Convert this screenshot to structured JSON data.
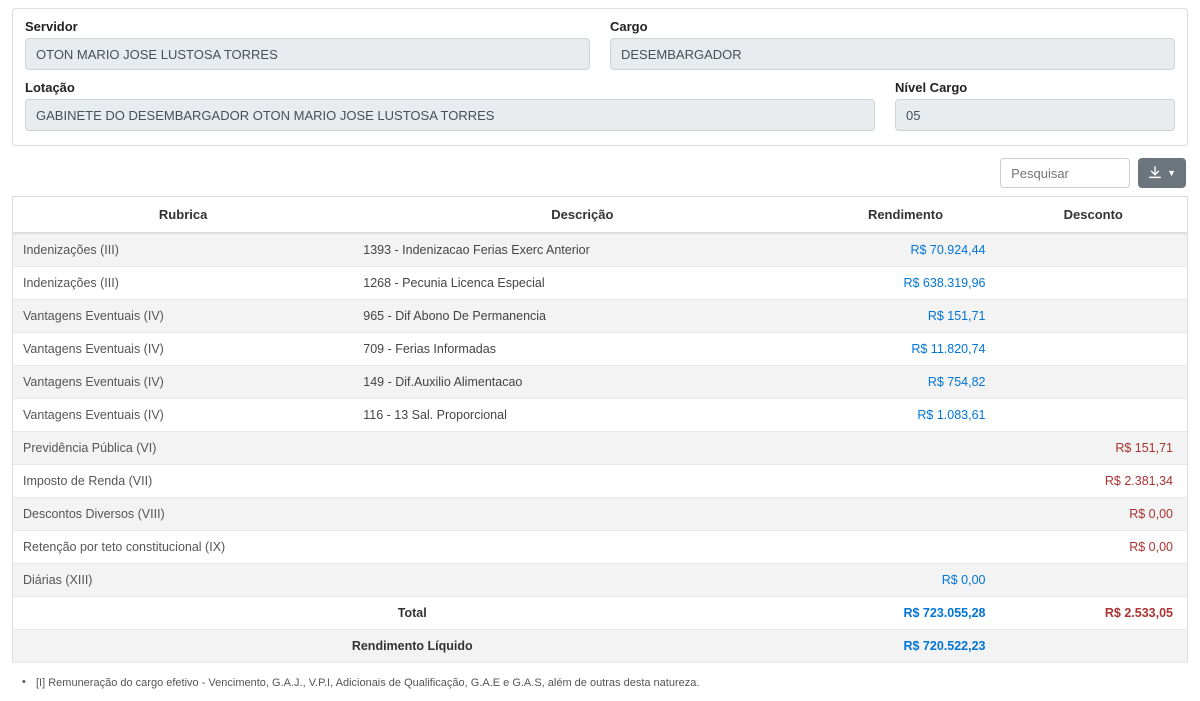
{
  "form": {
    "servidor": {
      "label": "Servidor",
      "value": "OTON MARIO JOSE LUSTOSA TORRES"
    },
    "cargo": {
      "label": "Cargo",
      "value": "DESEMBARGADOR"
    },
    "lotacao": {
      "label": "Lotação",
      "value": "GABINETE DO DESEMBARGADOR OTON MARIO JOSE LUSTOSA TORRES"
    },
    "nivel_cargo": {
      "label": "Nível Cargo",
      "value": "05"
    }
  },
  "toolbar": {
    "search_placeholder": "Pesquisar"
  },
  "table": {
    "headers": {
      "rubrica": "Rubrica",
      "descricao": "Descrição",
      "rendimento": "Rendimento",
      "desconto": "Desconto"
    },
    "rows": [
      {
        "rubrica": "Indenizações (III)",
        "descricao": "1393 - Indenizacao Ferias Exerc Anterior",
        "rendimento": "R$ 70.924,44",
        "desconto": ""
      },
      {
        "rubrica": "Indenizações (III)",
        "descricao": "1268 - Pecunia Licenca Especial",
        "rendimento": "R$ 638.319,96",
        "desconto": ""
      },
      {
        "rubrica": "Vantagens Eventuais (IV)",
        "descricao": "965 - Dif Abono De Permanencia",
        "rendimento": "R$ 151,71",
        "desconto": ""
      },
      {
        "rubrica": "Vantagens Eventuais (IV)",
        "descricao": "709 - Ferias Informadas",
        "rendimento": "R$ 11.820,74",
        "desconto": ""
      },
      {
        "rubrica": "Vantagens Eventuais (IV)",
        "descricao": "149 - Dif.Auxilio Alimentacao",
        "rendimento": "R$ 754,82",
        "desconto": ""
      },
      {
        "rubrica": "Vantagens Eventuais (IV)",
        "descricao": "116 - 13 Sal. Proporcional",
        "rendimento": "R$ 1.083,61",
        "desconto": ""
      },
      {
        "rubrica": "Previdência Pública (VI)",
        "descricao": "",
        "rendimento": "",
        "desconto": "R$ 151,71"
      },
      {
        "rubrica": "Imposto de Renda (VII)",
        "descricao": "",
        "rendimento": "",
        "desconto": "R$ 2.381,34"
      },
      {
        "rubrica": "Descontos Diversos (VIII)",
        "descricao": "",
        "rendimento": "",
        "desconto": "R$ 0,00"
      },
      {
        "rubrica": "Retenção por teto constitucional (IX)",
        "descricao": "",
        "rendimento": "",
        "desconto": "R$ 0,00"
      },
      {
        "rubrica": "Diárias (XIII)",
        "descricao": "",
        "rendimento": "R$ 0,00",
        "desconto": ""
      }
    ],
    "total": {
      "label": "Total",
      "rendimento": "R$ 723.055,28",
      "desconto": "R$ 2.533,05"
    },
    "liquido": {
      "label": "Rendimento Líquido",
      "rendimento": "R$ 720.522,23"
    }
  },
  "footnote": "[I] Remuneração do cargo efetivo - Vencimento, G.A.J., V.P.I, Adicionais de Qualificação, G.A.E e G.A.S, além de outras desta natureza.",
  "colors": {
    "rendimento": "#0275d8",
    "desconto": "#a33a3a",
    "row_stripe": "#f3f3f3",
    "input_bg": "#e9ecef",
    "btn_bg": "#6c757d"
  }
}
